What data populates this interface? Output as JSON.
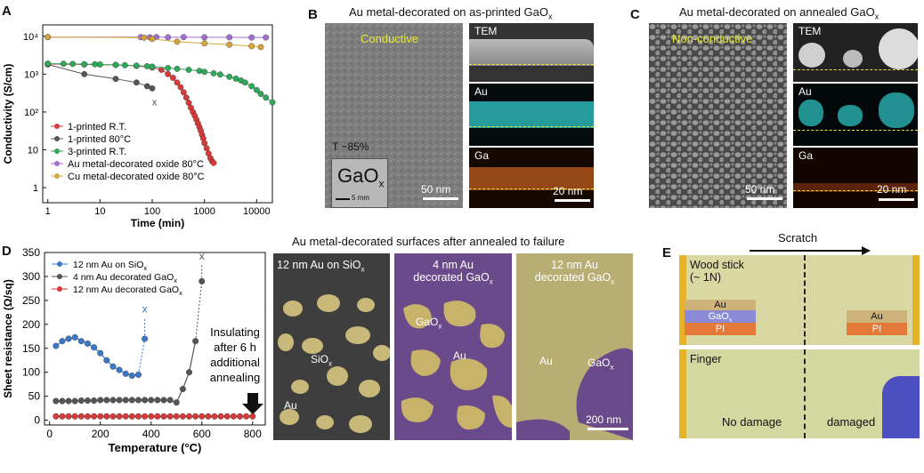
{
  "panels": {
    "a": "A",
    "b": "B",
    "c": "C",
    "d": "D",
    "e": "E"
  },
  "colors": {
    "red": "#d63a3a",
    "gray": "#555555",
    "green": "#2fa85a",
    "purple": "#a56fd1",
    "gold": "#d6a53a",
    "blue": "#3a78c8",
    "tem_yellow": "#e8e83a",
    "au_cyan": "#38d8d8",
    "ga_orange": "#e07a20",
    "goldp": "#c9b36a",
    "purplep": "#6a4a8a"
  },
  "panel_b": {
    "title": "Au metal-decorated on as-printed GaO",
    "title_sub": "x",
    "conductive": "Conductive",
    "transparency": "T ~85%",
    "sample_label": "GaO",
    "sample_sub": "x",
    "sample_scale": "5 mm",
    "scale_main": "50 nm",
    "tem": "TEM",
    "au": "Au",
    "ga": "Ga",
    "scale_eds": "20 nm"
  },
  "panel_c": {
    "title": "Au metal-decorated on annealed GaO",
    "title_sub": "x",
    "nonconductive": "Non-conductive",
    "scale_main": "50 nm",
    "tem": "TEM",
    "au": "Au",
    "ga": "Ga",
    "scale_eds": "20 nm"
  },
  "panel_d_micro": {
    "title": "Au metal-decorated surfaces after annealed to failure",
    "p1_label": "12 nm Au on SiO",
    "p1_sub": "x",
    "p1_a": "SiO",
    "p1_a_sub": "x",
    "p1_b": "Au",
    "p2_l1": "4 nm Au",
    "p2_l2": "decorated GaO",
    "p2_sub": "x",
    "p2_a": "GaO",
    "p2_a_sub": "x",
    "p2_b": "Au",
    "p3_l1": "12 nm Au",
    "p3_l2": "decorated GaO",
    "p3_sub": "x",
    "p3_a": "Au",
    "p3_b": "GaO",
    "p3_b_sub": "x",
    "scale": "200 nm"
  },
  "panel_e": {
    "scratch": "Scratch",
    "tool1_l1": "Wood stick",
    "tool1_l2": "(~ 1N)",
    "tool2": "Finger",
    "stack_au": "Au",
    "stack_gao": "GaO",
    "stack_gao_sub": "x",
    "stack_pi": "PI",
    "no_damage": "No damage",
    "damaged": "damaged"
  },
  "chart_data": [
    {
      "type": "scatter",
      "panel": "A",
      "xlabel": "Time (min)",
      "ylabel": "Conductivity (S/cm)",
      "xscale": "log",
      "yscale": "log",
      "xlim": [
        0.8,
        20000
      ],
      "ylim": [
        0.4,
        20000
      ],
      "xticks": [
        1,
        10,
        100,
        1000,
        10000
      ],
      "xtick_labels": [
        "1",
        "10",
        "100",
        "1000",
        "10000"
      ],
      "yticks": [
        1,
        10,
        100,
        1000,
        10000
      ],
      "ytick_labels": [
        "1",
        "10",
        "10²",
        "10³",
        "10⁴"
      ],
      "legend_position": "bottom-left",
      "failure_marker": "x",
      "failure_at": [
        110,
        150
      ],
      "series": [
        {
          "name": "1-printed R.T.",
          "color": "#d63a3a",
          "x": [
            1,
            5,
            20,
            50,
            100,
            150,
            200,
            250,
            300,
            350,
            400,
            450,
            500,
            550,
            600,
            650,
            700,
            750,
            800,
            850,
            900,
            950,
            1000,
            1100,
            1200,
            1300,
            1400,
            1500
          ],
          "y": [
            1850,
            1800,
            1750,
            1650,
            1500,
            1300,
            1000,
            800,
            600,
            450,
            330,
            240,
            175,
            130,
            100,
            80,
            63,
            50,
            40,
            32,
            25,
            20,
            15,
            11,
            8,
            6,
            5,
            4.5
          ]
        },
        {
          "name": "1-printed 80°C",
          "color": "#555555",
          "x": [
            1,
            5,
            20,
            50,
            80,
            100
          ],
          "y": [
            1800,
            1000,
            750,
            600,
            480,
            420
          ]
        },
        {
          "name": "3-printed R.T.",
          "color": "#2fa85a",
          "x": [
            1,
            2,
            3,
            5,
            8,
            10,
            20,
            30,
            50,
            80,
            100,
            200,
            300,
            500,
            800,
            1000,
            1500,
            2000,
            3000,
            4000,
            5000,
            6000,
            8000,
            10000,
            12000,
            15000,
            20000
          ],
          "y": [
            1900,
            1880,
            1860,
            1840,
            1820,
            1800,
            1760,
            1720,
            1680,
            1620,
            1580,
            1450,
            1380,
            1300,
            1220,
            1150,
            1050,
            980,
            850,
            760,
            680,
            600,
            480,
            380,
            300,
            240,
            180
          ]
        },
        {
          "name": "Au metal-decorated oxide 80°C",
          "color": "#a56fd1",
          "x": [
            1,
            60,
            90,
            120,
            200,
            400,
            1000,
            3000,
            8000,
            15000
          ],
          "y": [
            9500,
            9500,
            9400,
            9500,
            9400,
            9500,
            9400,
            9400,
            9300,
            9300
          ]
        },
        {
          "name": "Cu metal-decorated oxide 80°C",
          "color": "#d6a53a",
          "x": [
            1,
            70,
            100,
            300,
            1000,
            3000,
            8000,
            12000
          ],
          "y": [
            9500,
            9200,
            8500,
            7200,
            6500,
            6000,
            5500,
            5200
          ]
        }
      ]
    },
    {
      "type": "line",
      "panel": "D",
      "xlabel": "Temperature (°C)",
      "ylabel": "Sheet resistance (Ω/sq)",
      "xlim": [
        -20,
        850
      ],
      "ylim": [
        -10,
        350
      ],
      "xticks": [
        0,
        200,
        400,
        600,
        800
      ],
      "yticks": [
        0,
        50,
        100,
        150,
        200,
        250,
        300,
        350
      ],
      "legend_position": "top-left",
      "annotation_l1": "Insulating",
      "annotation_l2": "after 6 h",
      "annotation_l3": "additional",
      "annotation_l4": "annealing",
      "failure_marker": "x",
      "series": [
        {
          "name": "12 nm Au on SiO",
          "name_sub": "x",
          "color": "#3a78c8",
          "x": [
            25,
            50,
            75,
            100,
            125,
            150,
            175,
            200,
            225,
            250,
            275,
            300,
            325,
            350,
            375
          ],
          "y": [
            155,
            165,
            170,
            173,
            165,
            160,
            152,
            140,
            125,
            112,
            105,
            97,
            93,
            95,
            170
          ],
          "fail": [
            375,
            225
          ]
        },
        {
          "name": "4 nm Au decorated GaO",
          "name_sub": "x",
          "color": "#555555",
          "x": [
            25,
            50,
            75,
            100,
            125,
            150,
            175,
            200,
            225,
            250,
            275,
            300,
            325,
            350,
            375,
            400,
            425,
            450,
            475,
            500,
            525,
            550,
            575,
            600
          ],
          "y": [
            40,
            40,
            40,
            40,
            41,
            41,
            41,
            42,
            42,
            42,
            42,
            42,
            42,
            42,
            42,
            42,
            42,
            42,
            42,
            37,
            65,
            100,
            165,
            290
          ],
          "fail": [
            600,
            335
          ]
        },
        {
          "name": "12 nm Au decorated GaO",
          "name_sub": "x",
          "color": "#d63a3a",
          "x": [
            25,
            50,
            75,
            100,
            125,
            150,
            175,
            200,
            225,
            250,
            275,
            300,
            325,
            350,
            375,
            400,
            425,
            450,
            475,
            500,
            525,
            550,
            575,
            600,
            625,
            650,
            675,
            700,
            725,
            750,
            775,
            800
          ],
          "y": [
            8,
            8,
            8,
            8,
            8,
            8,
            8,
            8,
            8,
            8,
            8,
            8,
            8,
            8,
            8,
            8,
            8,
            8,
            8,
            8,
            8,
            8,
            8,
            8,
            8,
            8,
            8,
            8,
            8,
            8,
            8,
            8
          ]
        }
      ]
    }
  ]
}
